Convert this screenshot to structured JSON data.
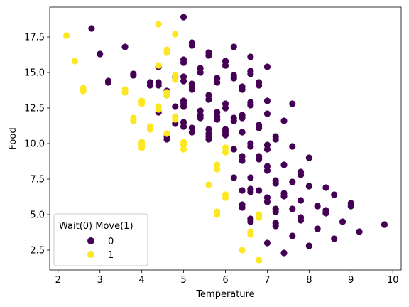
{
  "chart_data": {
    "type": "scatter",
    "title": "",
    "xlabel": "Temperature",
    "ylabel": "Food",
    "xlim": [
      1.8,
      10.2
    ],
    "ylim": [
      1.1,
      19.6
    ],
    "xticks": [
      2,
      3,
      4,
      5,
      6,
      7,
      8,
      9,
      10
    ],
    "yticks": [
      2.5,
      5.0,
      7.5,
      10.0,
      12.5,
      15.0,
      17.5
    ],
    "xtick_labels": [
      "2",
      "3",
      "4",
      "5",
      "6",
      "7",
      "8",
      "9",
      "10"
    ],
    "ytick_labels": [
      "2.5",
      "5.0",
      "7.5",
      "10.0",
      "12.5",
      "15.0",
      "17.5"
    ],
    "grid": false,
    "legend": {
      "title": "Wait(0) Move(1)",
      "placement": "lower-left",
      "entries": [
        "0",
        "1"
      ]
    },
    "series": [
      {
        "name": "0",
        "color": "#440154",
        "points": [
          [
            2.8,
            18.1
          ],
          [
            3.0,
            16.3
          ],
          [
            3.2,
            14.4
          ],
          [
            3.2,
            14.3
          ],
          [
            3.6,
            16.8
          ],
          [
            3.8,
            14.9
          ],
          [
            3.8,
            14.8
          ],
          [
            4.2,
            14.3
          ],
          [
            4.2,
            14.1
          ],
          [
            4.4,
            15.4
          ],
          [
            4.4,
            14.3
          ],
          [
            4.4,
            14.1
          ],
          [
            4.4,
            12.2
          ],
          [
            4.6,
            13.7
          ],
          [
            4.6,
            13.4
          ],
          [
            4.6,
            10.5
          ],
          [
            4.6,
            10.3
          ],
          [
            4.8,
            14.7
          ],
          [
            4.8,
            12.6
          ],
          [
            4.8,
            11.4
          ],
          [
            5.0,
            18.9
          ],
          [
            5.0,
            15.9
          ],
          [
            5.0,
            15.7
          ],
          [
            5.0,
            14.7
          ],
          [
            5.0,
            14.4
          ],
          [
            5.0,
            13.0
          ],
          [
            5.0,
            12.8
          ],
          [
            5.0,
            12.6
          ],
          [
            5.0,
            11.5
          ],
          [
            5.0,
            11.2
          ],
          [
            5.2,
            17.1
          ],
          [
            5.2,
            16.9
          ],
          [
            5.2,
            14.2
          ],
          [
            5.2,
            14.0
          ],
          [
            5.2,
            13.8
          ],
          [
            5.2,
            11.1
          ],
          [
            5.2,
            10.8
          ],
          [
            5.4,
            15.3
          ],
          [
            5.4,
            15.0
          ],
          [
            5.4,
            12.3
          ],
          [
            5.4,
            12.0
          ],
          [
            5.4,
            11.8
          ],
          [
            5.6,
            16.4
          ],
          [
            5.6,
            16.2
          ],
          [
            5.6,
            13.4
          ],
          [
            5.6,
            13.1
          ],
          [
            5.6,
            11.0
          ],
          [
            5.6,
            10.7
          ],
          [
            5.6,
            10.5
          ],
          [
            5.6,
            10.3
          ],
          [
            5.8,
            14.6
          ],
          [
            5.8,
            14.3
          ],
          [
            5.8,
            12.2
          ],
          [
            5.8,
            11.9
          ],
          [
            5.8,
            11.7
          ],
          [
            6.0,
            15.8
          ],
          [
            6.0,
            15.5
          ],
          [
            6.0,
            12.8
          ],
          [
            6.0,
            12.5
          ],
          [
            6.0,
            11.0
          ],
          [
            6.0,
            10.8
          ],
          [
            6.0,
            10.6
          ],
          [
            6.2,
            16.8
          ],
          [
            6.2,
            14.8
          ],
          [
            6.2,
            14.6
          ],
          [
            6.2,
            11.8
          ],
          [
            6.2,
            11.6
          ],
          [
            6.2,
            9.6
          ],
          [
            6.2,
            7.6
          ],
          [
            6.4,
            14.0
          ],
          [
            6.4,
            13.8
          ],
          [
            6.4,
            12.0
          ],
          [
            6.4,
            11.8
          ],
          [
            6.4,
            10.8
          ],
          [
            6.4,
            9.1
          ],
          [
            6.4,
            8.8
          ],
          [
            6.4,
            6.7
          ],
          [
            6.4,
            5.7
          ],
          [
            6.4,
            5.5
          ],
          [
            6.6,
            16.1
          ],
          [
            6.6,
            15.1
          ],
          [
            6.6,
            14.9
          ],
          [
            6.6,
            12.9
          ],
          [
            6.6,
            12.7
          ],
          [
            6.6,
            10.0
          ],
          [
            6.6,
            9.8
          ],
          [
            6.6,
            7.6
          ],
          [
            6.6,
            6.8
          ],
          [
            6.6,
            6.6
          ],
          [
            6.6,
            4.7
          ],
          [
            6.6,
            4.5
          ],
          [
            6.8,
            14.3
          ],
          [
            6.8,
            14.1
          ],
          [
            6.8,
            11.3
          ],
          [
            6.8,
            11.1
          ],
          [
            6.8,
            9.1
          ],
          [
            6.8,
            8.9
          ],
          [
            6.8,
            6.7
          ],
          [
            7.0,
            15.4
          ],
          [
            7.0,
            13.0
          ],
          [
            7.0,
            12.1
          ],
          [
            7.0,
            9.9
          ],
          [
            7.0,
            9.6
          ],
          [
            7.0,
            8.4
          ],
          [
            7.0,
            8.1
          ],
          [
            7.0,
            6.2
          ],
          [
            7.0,
            5.9
          ],
          [
            7.0,
            3.0
          ],
          [
            7.2,
            10.5
          ],
          [
            7.2,
            10.3
          ],
          [
            7.2,
            7.4
          ],
          [
            7.2,
            7.2
          ],
          [
            7.2,
            5.4
          ],
          [
            7.2,
            5.2
          ],
          [
            7.2,
            4.4
          ],
          [
            7.2,
            4.2
          ],
          [
            7.4,
            11.6
          ],
          [
            7.4,
            8.5
          ],
          [
            7.4,
            6.5
          ],
          [
            7.4,
            6.3
          ],
          [
            7.4,
            2.3
          ],
          [
            7.6,
            12.8
          ],
          [
            7.6,
            9.8
          ],
          [
            7.6,
            7.3
          ],
          [
            7.6,
            5.4
          ],
          [
            7.6,
            3.5
          ],
          [
            7.8,
            8.0
          ],
          [
            7.8,
            7.8
          ],
          [
            7.8,
            6.0
          ],
          [
            7.8,
            4.8
          ],
          [
            7.8,
            4.6
          ],
          [
            8.0,
            9.0
          ],
          [
            8.0,
            7.0
          ],
          [
            8.0,
            2.8
          ],
          [
            8.2,
            5.6
          ],
          [
            8.2,
            4.0
          ],
          [
            8.4,
            6.9
          ],
          [
            8.4,
            5.3
          ],
          [
            8.4,
            5.1
          ],
          [
            8.6,
            6.4
          ],
          [
            8.6,
            3.3
          ],
          [
            8.8,
            4.5
          ],
          [
            9.0,
            5.8
          ],
          [
            9.0,
            5.6
          ],
          [
            9.2,
            3.8
          ],
          [
            9.8,
            4.3
          ]
        ]
      },
      {
        "name": "1",
        "color": "#fde725",
        "points": [
          [
            2.2,
            17.6
          ],
          [
            2.4,
            15.8
          ],
          [
            2.6,
            13.9
          ],
          [
            2.6,
            13.7
          ],
          [
            3.6,
            13.8
          ],
          [
            3.6,
            13.6
          ],
          [
            3.8,
            11.8
          ],
          [
            3.8,
            11.6
          ],
          [
            4.0,
            13.0
          ],
          [
            4.0,
            12.8
          ],
          [
            4.0,
            10.1
          ],
          [
            4.0,
            9.9
          ],
          [
            4.0,
            9.7
          ],
          [
            4.2,
            11.2
          ],
          [
            4.2,
            11.0
          ],
          [
            4.4,
            18.4
          ],
          [
            4.4,
            15.5
          ],
          [
            4.4,
            12.6
          ],
          [
            4.4,
            12.4
          ],
          [
            4.6,
            16.6
          ],
          [
            4.6,
            16.4
          ],
          [
            4.6,
            13.6
          ],
          [
            4.6,
            13.4
          ],
          [
            4.6,
            10.7
          ],
          [
            4.8,
            17.7
          ],
          [
            4.8,
            14.8
          ],
          [
            4.8,
            14.5
          ],
          [
            4.8,
            11.9
          ],
          [
            4.8,
            11.7
          ],
          [
            5.0,
            10.1
          ],
          [
            5.0,
            9.9
          ],
          [
            5.0,
            9.6
          ],
          [
            5.6,
            7.1
          ],
          [
            5.8,
            8.5
          ],
          [
            5.8,
            8.2
          ],
          [
            5.8,
            5.2
          ],
          [
            5.8,
            5.0
          ],
          [
            6.0,
            9.7
          ],
          [
            6.0,
            9.4
          ],
          [
            6.0,
            6.4
          ],
          [
            6.0,
            6.2
          ],
          [
            6.4,
            2.5
          ],
          [
            6.6,
            3.8
          ],
          [
            6.6,
            3.6
          ],
          [
            6.8,
            5.0
          ],
          [
            6.8,
            4.8
          ],
          [
            6.8,
            1.8
          ]
        ]
      }
    ]
  }
}
